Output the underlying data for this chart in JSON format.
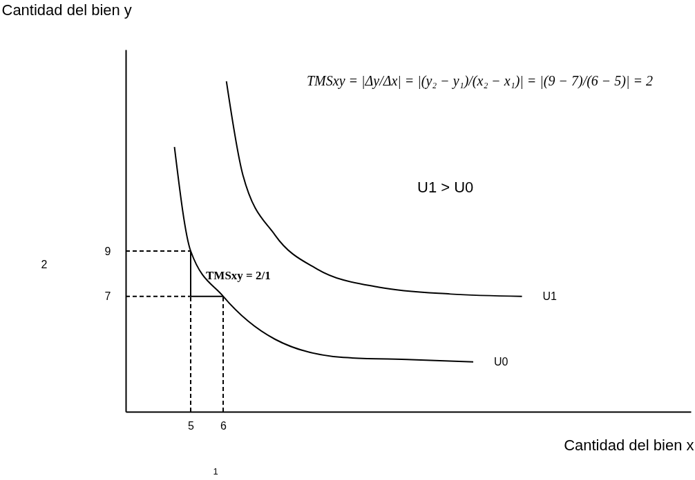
{
  "chart_data": {
    "type": "line",
    "xlabel": "Cantidad del bien x",
    "ylabel": "Cantidad del bien y",
    "xlim": [
      3,
      20.4
    ],
    "ylim": [
      1.9,
      17.9
    ],
    "xticks": [
      5,
      6
    ],
    "yticks": [
      7,
      9
    ],
    "marker": "none",
    "series": [
      {
        "name": "U0",
        "color": "#000000",
        "line_style": "solid",
        "x": [
          4.5,
          5,
          6,
          7.6,
          9.7,
          11.8,
          13.7
        ],
        "values": [
          13.6,
          9,
          7,
          5.1,
          4.3,
          4.2,
          4.1
        ]
      },
      {
        "name": "U1",
        "color": "#000000",
        "line_style": "solid",
        "x": [
          6.1,
          6.6,
          7.6,
          8.9,
          10.8,
          13,
          15.2
        ],
        "values": [
          16.5,
          12.4,
          9.7,
          8.2,
          7.4,
          7.1,
          7.0
        ]
      },
      {
        "color": "#000000",
        "line_style": "dashed",
        "x": [
          3,
          5
        ],
        "values": [
          9,
          9
        ]
      },
      {
        "color": "#000000",
        "line_style": "dashed",
        "x": [
          3,
          5
        ],
        "values": [
          7,
          7
        ]
      },
      {
        "color": "#000000",
        "line_style": "dashed",
        "x": [
          5,
          5
        ],
        "values": [
          1.9,
          7
        ]
      },
      {
        "color": "#000000",
        "line_style": "dashed",
        "x": [
          6,
          6
        ],
        "values": [
          1.9,
          7
        ]
      },
      {
        "color": "#000000",
        "line_style": "solid",
        "x": [
          5,
          5
        ],
        "values": [
          7,
          9
        ]
      },
      {
        "color": "#000000",
        "line_style": "solid",
        "x": [
          5,
          6
        ],
        "values": [
          7,
          7
        ]
      }
    ],
    "annotations": [
      "TMSxy = |Δy/Δx| = |(y₂ − y₁)/(x₂ − x₁)| = |(9 − 7)/(6 − 5)| = 2",
      "U1   >   U0",
      "TMSxy = 2/1",
      "2",
      "1"
    ]
  }
}
